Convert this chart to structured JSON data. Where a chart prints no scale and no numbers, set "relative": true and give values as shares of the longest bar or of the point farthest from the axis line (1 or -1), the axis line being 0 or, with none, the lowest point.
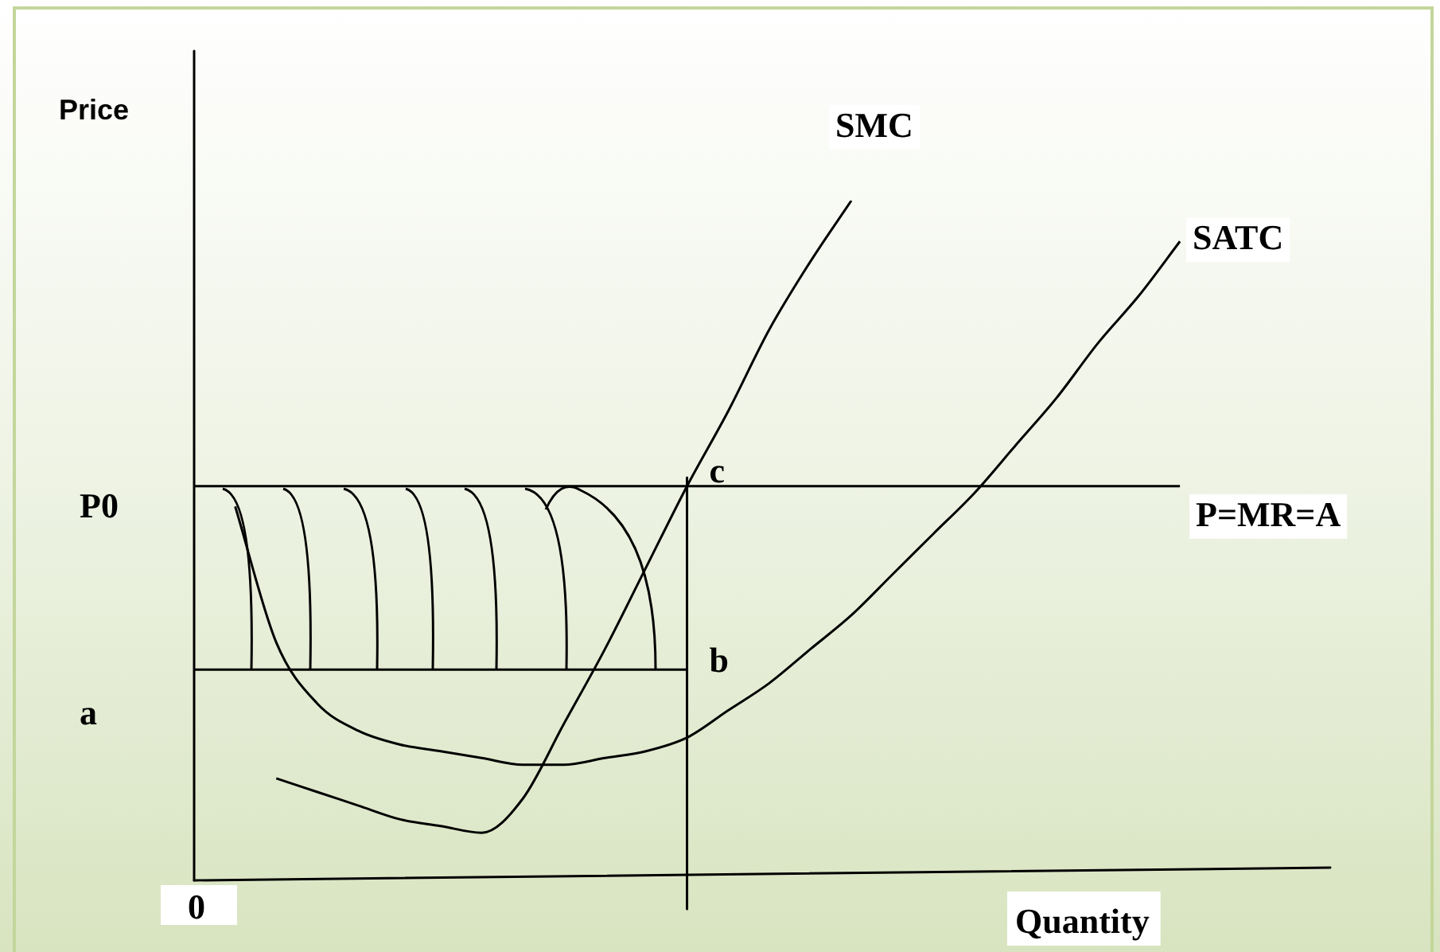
{
  "chart_data": {
    "type": "line",
    "relative": true,
    "xlabel": "Quantity",
    "ylabel": "Price",
    "categories": [
      null,
      null,
      null,
      null,
      null,
      null,
      null,
      null,
      null,
      null,
      null,
      null,
      null,
      null,
      null,
      null,
      null,
      null,
      null,
      null,
      null,
      null,
      null,
      null,
      null,
      null,
      null,
      null
    ],
    "series": [
      {
        "name": "SMC",
        "color": "#000000",
        "values": [
          null,
          null,
          0.15,
          0.13,
          0.11,
          0.09,
          0.08,
          0.07,
          0.12,
          0.23,
          0.34,
          0.46,
          0.58,
          0.69,
          0.81,
          0.91,
          1.0,
          null,
          null,
          null,
          null,
          null,
          null,
          null,
          null,
          null,
          null,
          null
        ]
      },
      {
        "name": "SATC",
        "color": "#000000",
        "values": [
          null,
          0.55,
          0.35,
          0.26,
          0.22,
          0.2,
          0.19,
          0.18,
          0.17,
          0.17,
          0.18,
          0.19,
          0.21,
          0.25,
          0.29,
          0.34,
          0.39,
          0.45,
          0.51,
          0.57,
          0.64,
          0.71,
          0.79,
          0.86,
          0.94,
          null,
          null,
          null
        ]
      },
      {
        "name": "P=MR=A",
        "color": "#000000",
        "values": [
          0.58,
          0.58,
          0.58,
          0.58,
          0.58,
          0.58,
          0.58,
          0.58,
          0.58,
          0.58,
          0.58,
          0.58,
          0.58,
          0.58,
          0.58,
          0.58,
          0.58,
          0.58,
          0.58,
          0.58,
          0.58,
          0.58,
          0.58,
          0.58,
          0.58,
          null,
          null,
          null
        ]
      },
      {
        "color": "#000000",
        "values": [
          0.31,
          0.31,
          0.31,
          0.31,
          0.31,
          0.31,
          0.31,
          0.31,
          0.31,
          0.31,
          0.31,
          0.31,
          0.31,
          null,
          null,
          null,
          null,
          null,
          null,
          null,
          null,
          null,
          null,
          null,
          null,
          null,
          null,
          null
        ]
      }
    ],
    "annotations": [
      "P0",
      "a",
      "c",
      "b",
      "0"
    ],
    "marker": "none",
    "legend": false
  }
}
